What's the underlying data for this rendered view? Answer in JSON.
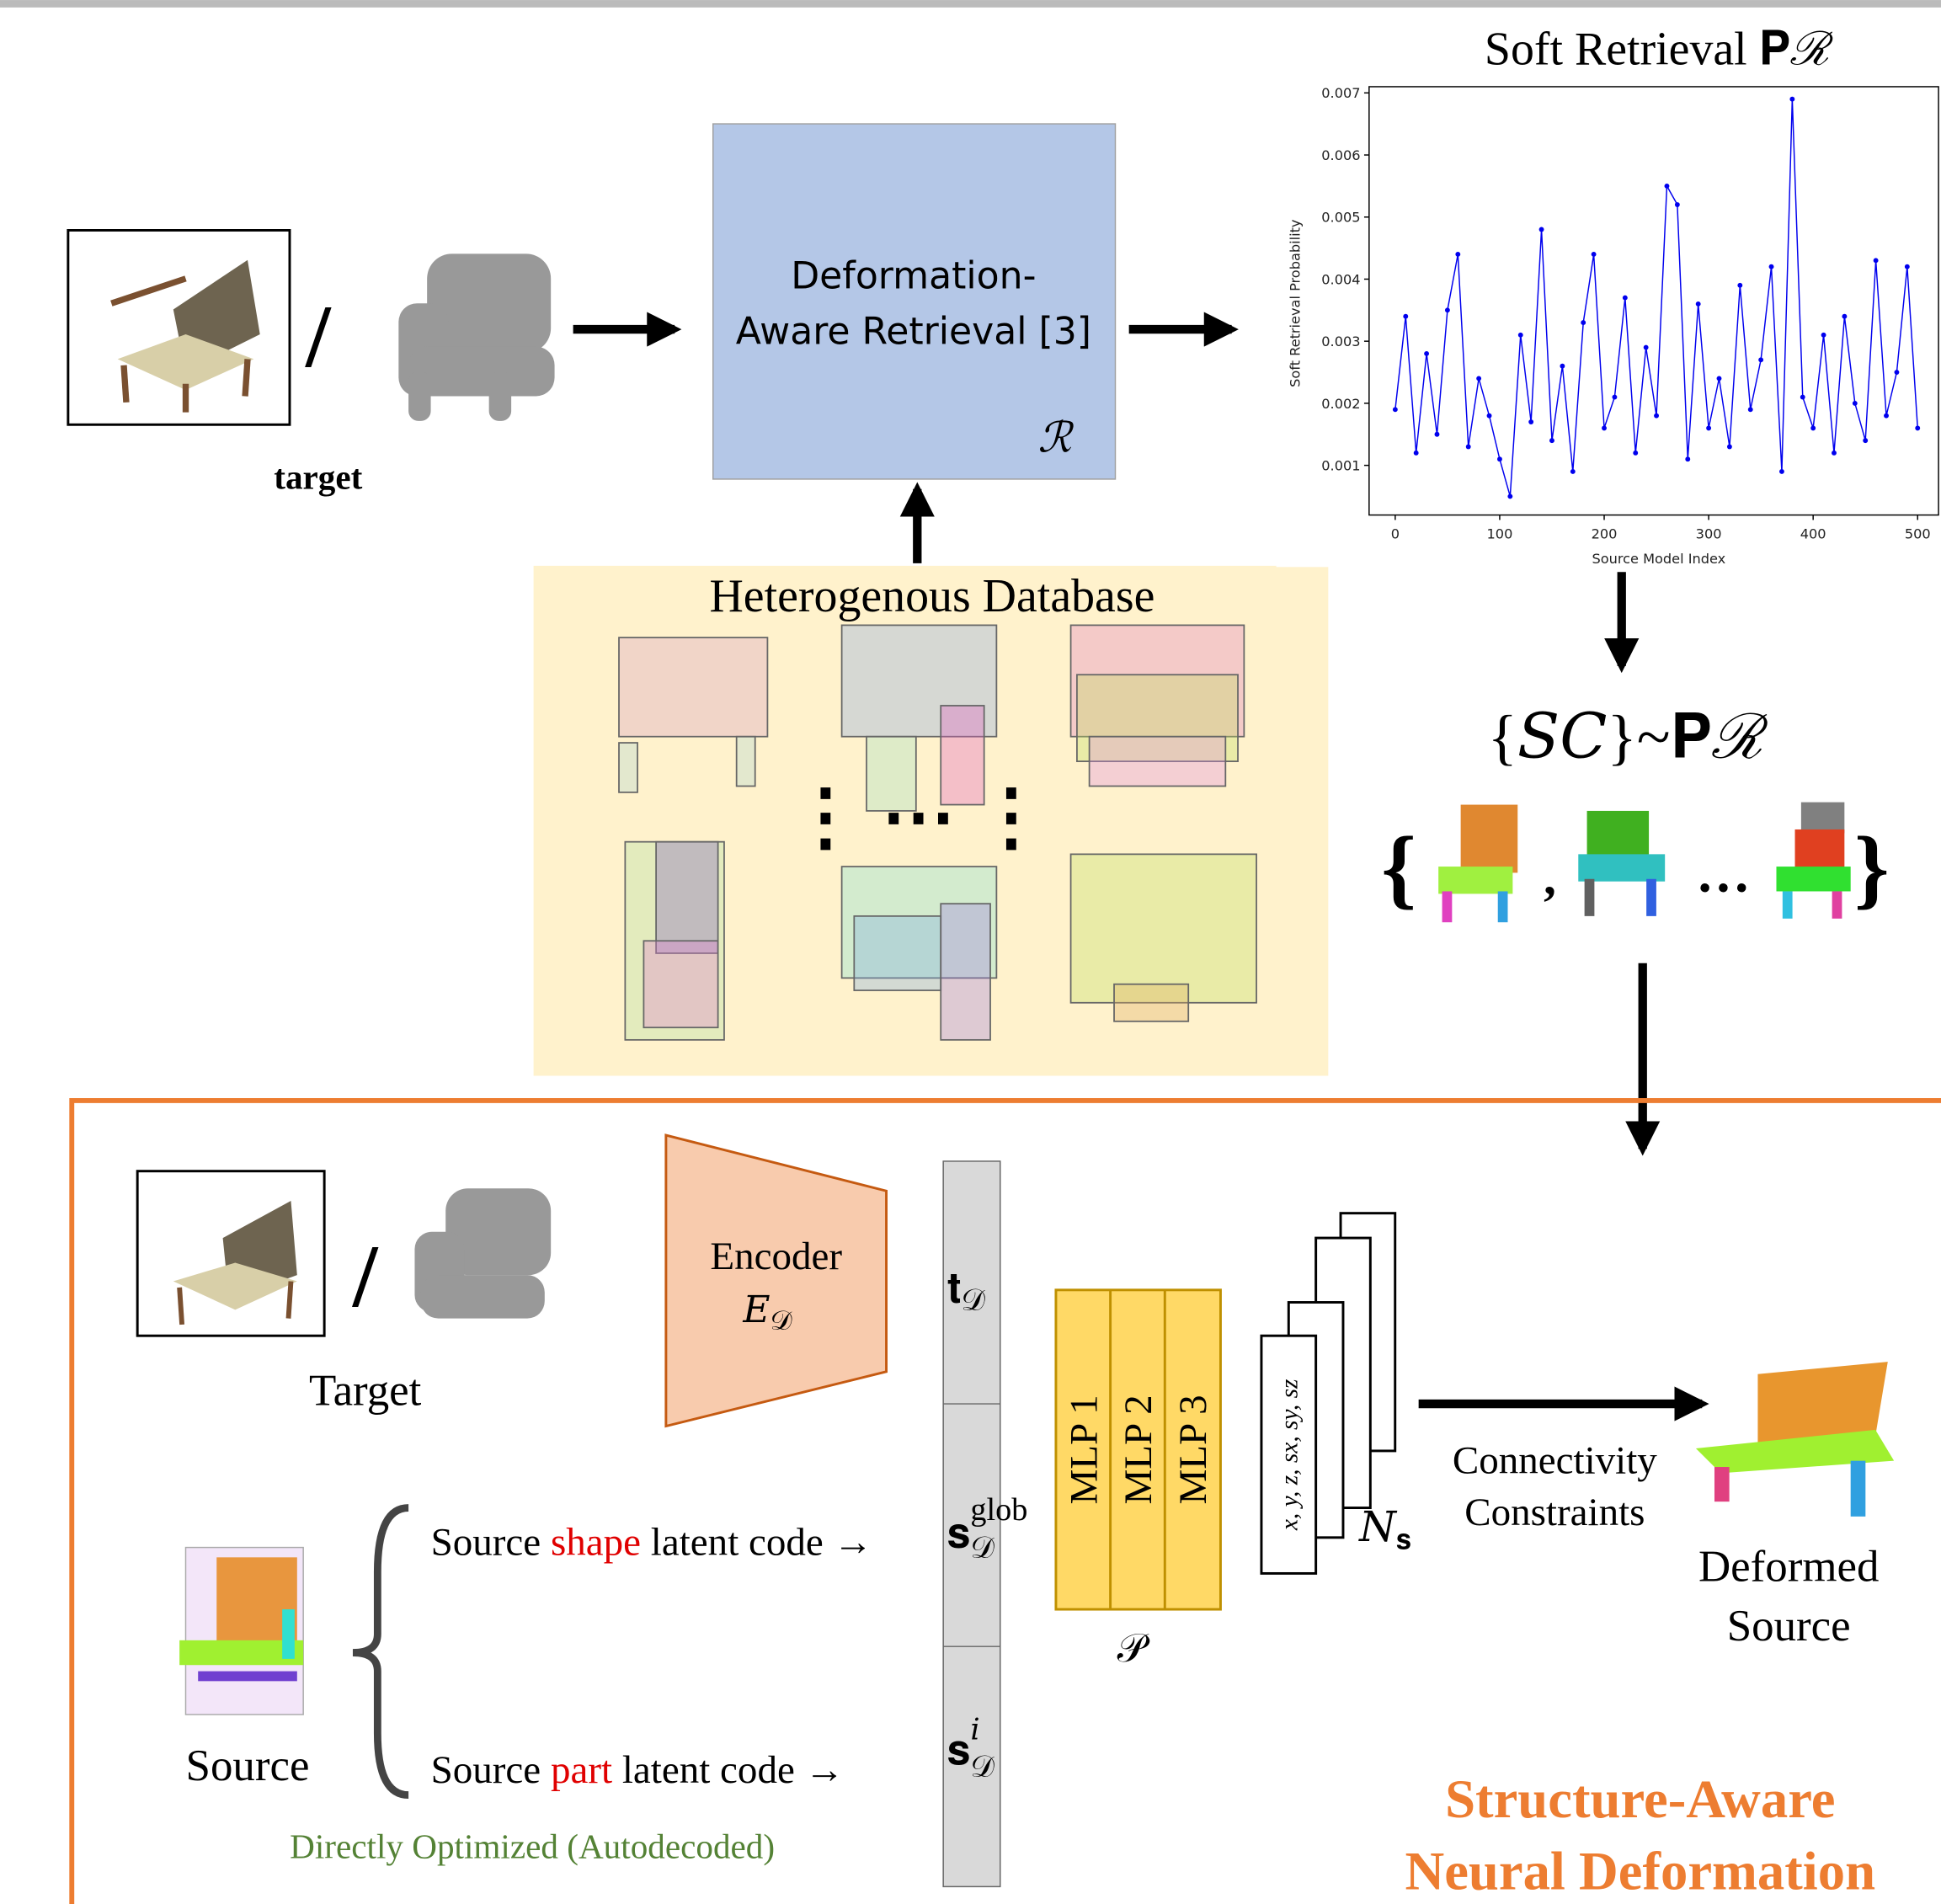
{
  "top": {
    "target_label": "target",
    "slash": "/",
    "retrieval_line1": "Deformation-",
    "retrieval_line2": "Aware Retrieval [3]",
    "retrieval_symbol": "ℛ",
    "database_title": "Heterogenous Database",
    "database_dots": "⋮ ⋯ ⋮",
    "sample_formula": "{𝑆𝐶}~𝐏ℛ",
    "sample_set_open": "{",
    "sample_set_sep": ",",
    "sample_set_ellipsis": "…",
    "sample_set_close": "}"
  },
  "chart_data": {
    "type": "line",
    "title": "Soft Retrieval 𝐏ℛ",
    "x_label": "Source Model Index",
    "y_label": "Soft Retrieval Probability",
    "color": "#0000ee",
    "xlim": [
      -25,
      520
    ],
    "ylim": [
      0.0002,
      0.0071
    ],
    "xticks": [
      0,
      100,
      200,
      300,
      400,
      500
    ],
    "yticks": [
      0.001,
      0.002,
      0.003,
      0.004,
      0.005,
      0.006,
      0.007
    ],
    "x": [
      0,
      10,
      20,
      30,
      40,
      50,
      60,
      70,
      80,
      90,
      100,
      110,
      120,
      130,
      140,
      150,
      160,
      170,
      180,
      190,
      200,
      210,
      220,
      230,
      240,
      250,
      260,
      270,
      280,
      290,
      300,
      310,
      320,
      330,
      340,
      350,
      360,
      370,
      380,
      390,
      400,
      410,
      420,
      430,
      440,
      450,
      460,
      470,
      480,
      490,
      500
    ],
    "values": [
      0.0019,
      0.0034,
      0.0012,
      0.0028,
      0.0015,
      0.0035,
      0.0044,
      0.0013,
      0.0024,
      0.0018,
      0.0011,
      0.0005,
      0.0031,
      0.0017,
      0.0048,
      0.0014,
      0.0026,
      0.0009,
      0.0033,
      0.0044,
      0.0016,
      0.0021,
      0.0037,
      0.0012,
      0.0029,
      0.0018,
      0.0055,
      0.0052,
      0.0011,
      0.0036,
      0.0016,
      0.0024,
      0.0013,
      0.0039,
      0.0019,
      0.0027,
      0.0042,
      0.0009,
      0.0069,
      0.0021,
      0.0016,
      0.0031,
      0.0012,
      0.0034,
      0.002,
      0.0014,
      0.0043,
      0.0018,
      0.0025,
      0.0042,
      0.0016
    ]
  },
  "bottom": {
    "target_label": "Target",
    "slash": "/",
    "encoder_label": "Encoder",
    "encoder_symbol": "𝐸",
    "encoder_sub": "𝒟",
    "t_code": "𝐭",
    "t_sub": "𝒟",
    "s_glob": "𝐬",
    "s_glob_sup": "glob",
    "s_glob_sub": "𝒟",
    "s_part": "𝐬",
    "s_part_sup": "𝑖",
    "s_part_sub": "𝒟",
    "mlp": [
      "MLP 1",
      "MLP 2",
      "MLP 3"
    ],
    "mlp_symbol": "𝒫",
    "params": "x, y, z, sx, sy, sz",
    "count_symbol": "𝑁",
    "count_sub": "𝐬",
    "connectivity_line1": "Connectivity",
    "connectivity_line2": "Constraints",
    "deformed_line1": "Deformed",
    "deformed_line2": "Source",
    "source_label": "Source",
    "shape_code": [
      "Source",
      "shape",
      "latent code →"
    ],
    "part_code": [
      "Source",
      "part",
      "latent code →"
    ],
    "autodecoded": "Directly Optimized (Autodecoded)",
    "module_line1": "Structure-Aware",
    "module_line2": "Neural Deformation"
  }
}
